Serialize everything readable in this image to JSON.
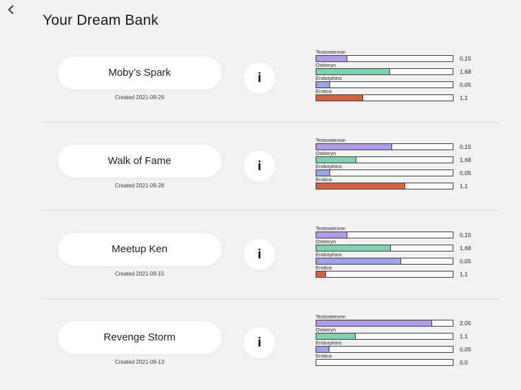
{
  "header": {
    "title": "Your Dream Bank"
  },
  "info_button_label": "i",
  "palette": {
    "testosterone": "#b49aec",
    "oxitocyn": "#7dd2af",
    "endorphins": "#9aa3ec",
    "erotica": "#d9603f",
    "bar_border": "#3d3d3d",
    "bar_track": "#fcfcfc",
    "page_bg": "#f1f1f2"
  },
  "dreams": [
    {
      "name": "Moby’s Spark",
      "created": "Created 2021-09-29",
      "bars": [
        {
          "label": "Testosterone",
          "value": "0,15",
          "percent": 22.5
        },
        {
          "label": "Oxitocyn",
          "value": "1,68",
          "percent": 54
        },
        {
          "label": "Endorphins",
          "value": "0,05",
          "percent": 10
        },
        {
          "label": "Erotica",
          "value": "1,1",
          "percent": 34.5
        }
      ]
    },
    {
      "name": "Walk of Fame",
      "created": "Created 2021-09-28",
      "bars": [
        {
          "label": "Testosterone",
          "value": "0,15",
          "percent": 55.5
        },
        {
          "label": "Oxitocyn",
          "value": "1,68",
          "percent": 29.5
        },
        {
          "label": "Endorphins",
          "value": "0,05",
          "percent": 10
        },
        {
          "label": "Erotica",
          "value": "1,1",
          "percent": 65
        }
      ]
    },
    {
      "name": "Meetup Ken",
      "created": "Created 2021-09-15",
      "bars": [
        {
          "label": "Testosterone",
          "value": "0,15",
          "percent": 22.5
        },
        {
          "label": "Oxitocyn",
          "value": "1,68",
          "percent": 54.5
        },
        {
          "label": "Endorphins",
          "value": "0,05",
          "percent": 62
        },
        {
          "label": "Erotica",
          "value": "1,1",
          "percent": 7
        }
      ]
    },
    {
      "name": "Revenge Storm",
      "created": "Created 2021-09-13",
      "bars": [
        {
          "label": "Testosterone",
          "value": "2,05",
          "percent": 85
        },
        {
          "label": "Oxitocyn",
          "value": "1,1",
          "percent": 29
        },
        {
          "label": "Endorphins",
          "value": "0,05",
          "percent": 9.5
        },
        {
          "label": "Erotica",
          "value": "0,0",
          "percent": 0
        }
      ]
    }
  ]
}
